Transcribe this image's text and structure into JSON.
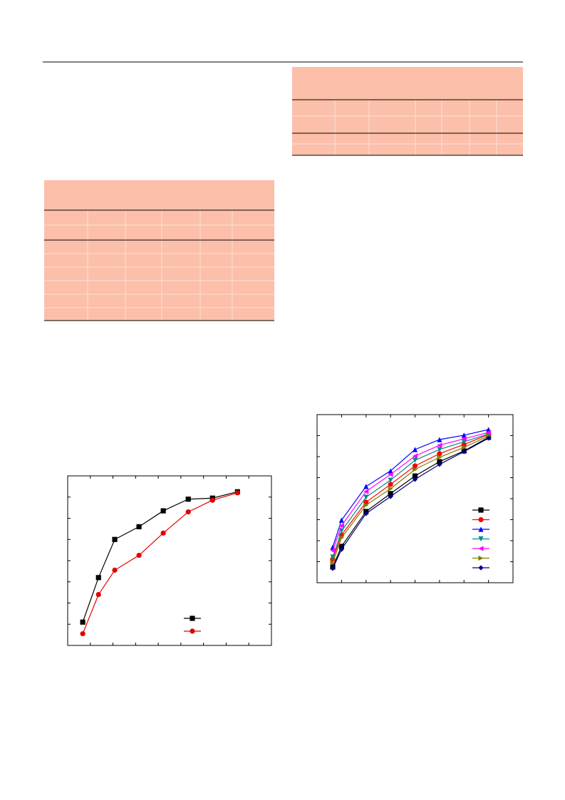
{
  "chart_data": [
    {
      "type": "line",
      "xlim": [
        0,
        8.4
      ],
      "ylim": [
        0,
        8
      ],
      "x": [
        0.62,
        1.27,
        1.94,
        2.94,
        3.94,
        4.97,
        5.97,
        7.0
      ],
      "series": [
        {
          "color": "#000000",
          "marker": "square",
          "values": [
            1.1,
            3.2,
            5.0,
            5.6,
            6.35,
            6.9,
            6.95,
            7.25
          ]
        },
        {
          "color": "#e00000",
          "marker": "circle",
          "values": [
            0.55,
            2.4,
            3.55,
            4.25,
            5.3,
            6.3,
            6.85,
            7.2
          ]
        }
      ]
    },
    {
      "type": "line",
      "xlim": [
        0,
        8
      ],
      "ylim": [
        0,
        8
      ],
      "x": [
        0.64,
        1,
        2,
        3,
        4,
        5,
        6,
        7
      ],
      "series": [
        {
          "color": "#000000",
          "marker": "square",
          "values": [
            0.75,
            1.73,
            3.39,
            4.24,
            5.08,
            5.76,
            6.27,
            6.92
          ]
        },
        {
          "color": "#ff0000",
          "marker": "circle",
          "values": [
            1.12,
            2.27,
            3.83,
            4.68,
            5.56,
            6.14,
            6.58,
            7.05
          ]
        },
        {
          "color": "#0000ff",
          "marker": "up",
          "values": [
            1.69,
            2.98,
            4.58,
            5.32,
            6.34,
            6.81,
            7.02,
            7.29
          ]
        },
        {
          "color": "#008b8b",
          "marker": "down",
          "values": [
            1.22,
            2.47,
            4.07,
            4.88,
            5.83,
            6.34,
            6.71,
            7.08
          ]
        },
        {
          "color": "#ff00ff",
          "marker": "left",
          "values": [
            1.53,
            2.71,
            4.34,
            5.15,
            6.03,
            6.54,
            6.85,
            7.15
          ]
        },
        {
          "color": "#808000",
          "marker": "right",
          "values": [
            0.95,
            2.14,
            3.69,
            4.47,
            5.39,
            5.97,
            6.44,
            6.98
          ]
        },
        {
          "color": "#000080",
          "marker": "diamond",
          "values": [
            0.68,
            1.59,
            3.29,
            4.1,
            4.92,
            5.63,
            6.24,
            6.88
          ]
        }
      ]
    }
  ]
}
